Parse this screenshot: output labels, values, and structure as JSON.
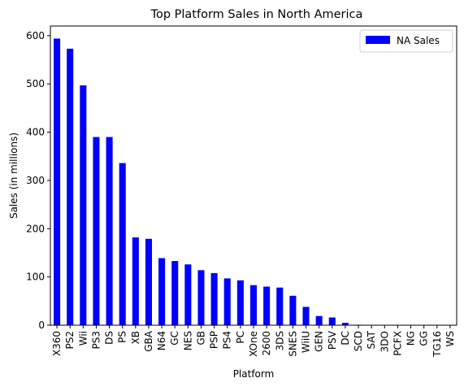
{
  "chart_data": {
    "type": "bar",
    "title": "Top Platform Sales in North America",
    "xlabel": "Platform",
    "ylabel": "Sales (in millions)",
    "ylim": [
      0,
      620
    ],
    "yticks": [
      0,
      100,
      200,
      300,
      400,
      500,
      600
    ],
    "grid": false,
    "legend_position": "top-right",
    "categories": [
      "X360",
      "PS2",
      "Wii",
      "PS3",
      "DS",
      "PS",
      "XB",
      "GBA",
      "N64",
      "GC",
      "NES",
      "GB",
      "PSP",
      "PS4",
      "PC",
      "XOne",
      "2600",
      "3DS",
      "SNES",
      "WiiU",
      "GEN",
      "PSV",
      "DC",
      "SCD",
      "SAT",
      "3DO",
      "PCFX",
      "NG",
      "GG",
      "TG16",
      "WS"
    ],
    "series": [
      {
        "name": "NA Sales",
        "color": "#0000ff",
        "values": [
          594,
          573,
          497,
          390,
          390,
          336,
          182,
          179,
          139,
          133,
          126,
          114,
          108,
          97,
          93,
          83,
          80,
          78,
          61,
          38,
          19,
          16,
          5,
          1,
          0.7,
          0,
          0,
          0,
          0,
          0,
          0
        ]
      }
    ]
  }
}
